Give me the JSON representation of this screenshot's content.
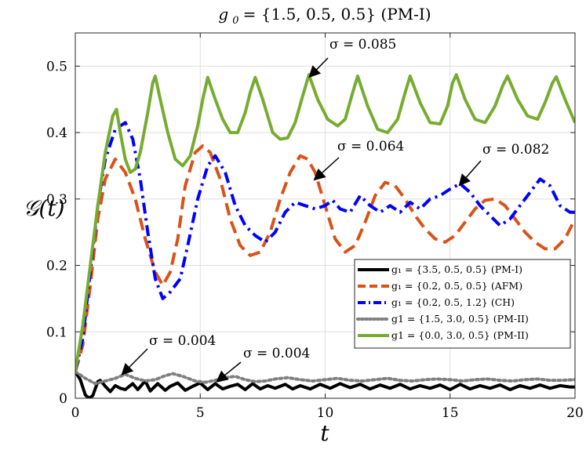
{
  "chart_data": {
    "type": "line",
    "title": "g_0 = {1.5, 0.5, 0.5} (PM-I)",
    "title_parts": {
      "symbol": "g",
      "subscript": "0",
      "rest": " = {1.5, 0.5, 0.5} (PM-I)"
    },
    "xlabel": "t",
    "ylabel": "𝒢(t)",
    "xlim": [
      0,
      20
    ],
    "ylim": [
      0,
      0.55
    ],
    "xticks": [
      0,
      5,
      10,
      15,
      20
    ],
    "xtick_labels": [
      "0",
      "5",
      "10",
      "15",
      "20"
    ],
    "yticks": [
      0,
      0.1,
      0.2,
      0.3,
      0.4,
      0.5
    ],
    "ytick_labels": [
      "0",
      "0.1",
      "0.2",
      "0.3",
      "0.4",
      "0.5"
    ],
    "grid": true,
    "legend_position": "lower-right",
    "series": [
      {
        "name": "g1 = {3.5, 0.5, 0.5} (PM-I)",
        "legend_label": "g₁ = {3.5, 0.5, 0.5} (PM-I)",
        "color": "#000000",
        "dash": "solid",
        "points": [
          [
            0,
            0.04
          ],
          [
            0.2,
            0.028
          ],
          [
            0.4,
            0.005
          ],
          [
            0.55,
            0.0
          ],
          [
            0.7,
            0.004
          ],
          [
            0.9,
            0.025
          ],
          [
            1.0,
            0.027
          ],
          [
            1.2,
            0.018
          ],
          [
            1.4,
            0.01
          ],
          [
            1.6,
            0.019
          ],
          [
            1.8,
            0.015
          ],
          [
            2.0,
            0.013
          ],
          [
            2.3,
            0.022
          ],
          [
            2.5,
            0.013
          ],
          [
            2.8,
            0.026
          ],
          [
            3.0,
            0.011
          ],
          [
            3.3,
            0.022
          ],
          [
            3.6,
            0.012
          ],
          [
            3.8,
            0.018
          ],
          [
            4.1,
            0.023
          ],
          [
            4.4,
            0.012
          ],
          [
            4.7,
            0.018
          ],
          [
            5.0,
            0.023
          ],
          [
            5.3,
            0.013
          ],
          [
            5.6,
            0.022
          ],
          [
            5.9,
            0.014
          ],
          [
            6.2,
            0.018
          ],
          [
            6.5,
            0.021
          ],
          [
            6.8,
            0.013
          ],
          [
            7.1,
            0.022
          ],
          [
            7.4,
            0.014
          ],
          [
            7.7,
            0.019
          ],
          [
            8.0,
            0.015
          ],
          [
            8.4,
            0.021
          ],
          [
            8.7,
            0.014
          ],
          [
            9.0,
            0.019
          ],
          [
            9.4,
            0.014
          ],
          [
            9.8,
            0.021
          ],
          [
            10.2,
            0.015
          ],
          [
            10.6,
            0.022
          ],
          [
            11.0,
            0.016
          ],
          [
            11.4,
            0.021
          ],
          [
            11.8,
            0.014
          ],
          [
            12.2,
            0.02
          ],
          [
            12.6,
            0.015
          ],
          [
            13.0,
            0.021
          ],
          [
            13.4,
            0.014
          ],
          [
            13.8,
            0.019
          ],
          [
            14.2,
            0.015
          ],
          [
            14.6,
            0.02
          ],
          [
            15.0,
            0.013
          ],
          [
            15.4,
            0.021
          ],
          [
            15.8,
            0.014
          ],
          [
            16.2,
            0.019
          ],
          [
            16.6,
            0.015
          ],
          [
            17.0,
            0.02
          ],
          [
            17.4,
            0.013
          ],
          [
            17.8,
            0.019
          ],
          [
            18.2,
            0.015
          ],
          [
            18.6,
            0.02
          ],
          [
            19.0,
            0.015
          ],
          [
            19.4,
            0.019
          ],
          [
            19.8,
            0.017
          ],
          [
            20.0,
            0.017
          ]
        ]
      },
      {
        "name": "g1 = {0.2, 0.5, 0.5} (AFM)",
        "legend_label": "g₁ = {0.2, 0.5, 0.5} (AFM)",
        "color": "#d95319",
        "dash": "dashed",
        "points": [
          [
            0,
            0.04
          ],
          [
            0.3,
            0.08
          ],
          [
            0.6,
            0.17
          ],
          [
            0.9,
            0.27
          ],
          [
            1.2,
            0.33
          ],
          [
            1.6,
            0.36
          ],
          [
            2.0,
            0.34
          ],
          [
            2.4,
            0.3
          ],
          [
            2.8,
            0.24
          ],
          [
            3.2,
            0.19
          ],
          [
            3.5,
            0.17
          ],
          [
            3.8,
            0.19
          ],
          [
            4.1,
            0.24
          ],
          [
            4.4,
            0.32
          ],
          [
            4.8,
            0.37
          ],
          [
            5.1,
            0.38
          ],
          [
            5.4,
            0.37
          ],
          [
            5.8,
            0.33
          ],
          [
            6.2,
            0.27
          ],
          [
            6.6,
            0.23
          ],
          [
            7.0,
            0.215
          ],
          [
            7.4,
            0.22
          ],
          [
            7.8,
            0.25
          ],
          [
            8.2,
            0.3
          ],
          [
            8.6,
            0.34
          ],
          [
            9.0,
            0.365
          ],
          [
            9.3,
            0.36
          ],
          [
            9.6,
            0.34
          ],
          [
            10.0,
            0.29
          ],
          [
            10.4,
            0.24
          ],
          [
            10.8,
            0.22
          ],
          [
            11.2,
            0.23
          ],
          [
            11.6,
            0.265
          ],
          [
            12.0,
            0.305
          ],
          [
            12.4,
            0.325
          ],
          [
            12.8,
            0.32
          ],
          [
            13.2,
            0.3
          ],
          [
            13.6,
            0.275
          ],
          [
            14.0,
            0.255
          ],
          [
            14.4,
            0.24
          ],
          [
            14.8,
            0.235
          ],
          [
            15.2,
            0.245
          ],
          [
            15.6,
            0.265
          ],
          [
            16.0,
            0.285
          ],
          [
            16.4,
            0.298
          ],
          [
            16.8,
            0.3
          ],
          [
            17.2,
            0.29
          ],
          [
            17.6,
            0.27
          ],
          [
            18.0,
            0.25
          ],
          [
            18.4,
            0.235
          ],
          [
            18.8,
            0.225
          ],
          [
            19.2,
            0.225
          ],
          [
            19.6,
            0.24
          ],
          [
            20.0,
            0.27
          ]
        ]
      },
      {
        "name": "g1 = {0.2, 0.5, 1.2} (CH)",
        "legend_label": "g₁ = {0.2, 0.5, 1.2} (CH)",
        "color": "#0000ff",
        "dash": "dashdot",
        "points": [
          [
            0,
            0.04
          ],
          [
            0.3,
            0.09
          ],
          [
            0.6,
            0.19
          ],
          [
            0.9,
            0.29
          ],
          [
            1.2,
            0.36
          ],
          [
            1.6,
            0.405
          ],
          [
            2.0,
            0.415
          ],
          [
            2.3,
            0.39
          ],
          [
            2.6,
            0.33
          ],
          [
            2.9,
            0.25
          ],
          [
            3.2,
            0.18
          ],
          [
            3.5,
            0.15
          ],
          [
            3.8,
            0.16
          ],
          [
            4.2,
            0.18
          ],
          [
            4.5,
            0.23
          ],
          [
            4.9,
            0.3
          ],
          [
            5.3,
            0.35
          ],
          [
            5.6,
            0.365
          ],
          [
            6.0,
            0.34
          ],
          [
            6.4,
            0.29
          ],
          [
            6.8,
            0.26
          ],
          [
            7.2,
            0.245
          ],
          [
            7.6,
            0.235
          ],
          [
            8.0,
            0.25
          ],
          [
            8.4,
            0.28
          ],
          [
            8.8,
            0.295
          ],
          [
            9.2,
            0.29
          ],
          [
            9.6,
            0.285
          ],
          [
            10.0,
            0.29
          ],
          [
            10.3,
            0.298
          ],
          [
            10.6,
            0.285
          ],
          [
            11.0,
            0.28
          ],
          [
            11.4,
            0.305
          ],
          [
            11.8,
            0.29
          ],
          [
            12.2,
            0.28
          ],
          [
            12.6,
            0.29
          ],
          [
            13.0,
            0.28
          ],
          [
            13.4,
            0.295
          ],
          [
            13.8,
            0.285
          ],
          [
            14.2,
            0.3
          ],
          [
            14.6,
            0.305
          ],
          [
            15.0,
            0.315
          ],
          [
            15.4,
            0.323
          ],
          [
            15.8,
            0.31
          ],
          [
            16.2,
            0.29
          ],
          [
            16.6,
            0.275
          ],
          [
            17.0,
            0.26
          ],
          [
            17.4,
            0.27
          ],
          [
            17.8,
            0.29
          ],
          [
            18.2,
            0.31
          ],
          [
            18.6,
            0.33
          ],
          [
            19.0,
            0.32
          ],
          [
            19.4,
            0.29
          ],
          [
            19.8,
            0.28
          ],
          [
            20.0,
            0.28
          ]
        ]
      },
      {
        "name": "g1 = {1.5, 3.0, 0.5} (PM-II)",
        "legend_label": "g1 = {1.5, 3.0, 0.5} (PM-II)",
        "color": "#808080",
        "dash": "dotted",
        "points": [
          [
            0,
            0.04
          ],
          [
            0.4,
            0.03
          ],
          [
            0.8,
            0.022
          ],
          [
            1.2,
            0.026
          ],
          [
            1.6,
            0.03
          ],
          [
            2.0,
            0.036
          ],
          [
            2.4,
            0.03
          ],
          [
            2.8,
            0.026
          ],
          [
            3.2,
            0.028
          ],
          [
            3.6,
            0.034
          ],
          [
            3.9,
            0.037
          ],
          [
            4.3,
            0.033
          ],
          [
            4.8,
            0.026
          ],
          [
            5.2,
            0.024
          ],
          [
            5.6,
            0.027
          ],
          [
            6.0,
            0.031
          ],
          [
            6.4,
            0.033
          ],
          [
            6.8,
            0.028
          ],
          [
            7.2,
            0.025
          ],
          [
            7.6,
            0.026
          ],
          [
            8.0,
            0.029
          ],
          [
            8.5,
            0.031
          ],
          [
            9.0,
            0.028
          ],
          [
            9.5,
            0.026
          ],
          [
            10.0,
            0.028
          ],
          [
            10.5,
            0.03
          ],
          [
            11.0,
            0.027
          ],
          [
            11.5,
            0.026
          ],
          [
            12.0,
            0.028
          ],
          [
            12.5,
            0.03
          ],
          [
            13.0,
            0.027
          ],
          [
            13.5,
            0.026
          ],
          [
            14.0,
            0.028
          ],
          [
            14.5,
            0.029
          ],
          [
            15.0,
            0.028
          ],
          [
            15.5,
            0.026
          ],
          [
            16.0,
            0.028
          ],
          [
            16.5,
            0.029
          ],
          [
            17.0,
            0.027
          ],
          [
            17.5,
            0.026
          ],
          [
            18.0,
            0.028
          ],
          [
            18.5,
            0.029
          ],
          [
            19.0,
            0.027
          ],
          [
            19.5,
            0.027
          ],
          [
            20.0,
            0.028
          ]
        ]
      },
      {
        "name": "g1 = {0.0, 3.0, 0.5} (PM-II)",
        "legend_label": "g1 = {0.0, 3.0, 0.5} (PM-II)",
        "color": "#77ac30",
        "dash": "solid",
        "points": [
          [
            0,
            0.04
          ],
          [
            0.3,
            0.11
          ],
          [
            0.6,
            0.2
          ],
          [
            0.9,
            0.29
          ],
          [
            1.2,
            0.37
          ],
          [
            1.5,
            0.425
          ],
          [
            1.65,
            0.435
          ],
          [
            1.8,
            0.4
          ],
          [
            2.0,
            0.36
          ],
          [
            2.2,
            0.34
          ],
          [
            2.4,
            0.345
          ],
          [
            2.6,
            0.37
          ],
          [
            2.9,
            0.43
          ],
          [
            3.1,
            0.475
          ],
          [
            3.2,
            0.485
          ],
          [
            3.4,
            0.45
          ],
          [
            3.7,
            0.4
          ],
          [
            4.0,
            0.36
          ],
          [
            4.3,
            0.35
          ],
          [
            4.6,
            0.365
          ],
          [
            4.9,
            0.41
          ],
          [
            5.1,
            0.45
          ],
          [
            5.3,
            0.483
          ],
          [
            5.6,
            0.45
          ],
          [
            5.9,
            0.42
          ],
          [
            6.2,
            0.4
          ],
          [
            6.5,
            0.4
          ],
          [
            6.8,
            0.43
          ],
          [
            7.0,
            0.46
          ],
          [
            7.2,
            0.483
          ],
          [
            7.5,
            0.45
          ],
          [
            7.9,
            0.4
          ],
          [
            8.2,
            0.39
          ],
          [
            8.5,
            0.392
          ],
          [
            8.8,
            0.415
          ],
          [
            9.1,
            0.455
          ],
          [
            9.35,
            0.487
          ],
          [
            9.7,
            0.45
          ],
          [
            10.1,
            0.42
          ],
          [
            10.5,
            0.41
          ],
          [
            10.8,
            0.42
          ],
          [
            11.1,
            0.46
          ],
          [
            11.3,
            0.485
          ],
          [
            11.7,
            0.44
          ],
          [
            12.1,
            0.405
          ],
          [
            12.5,
            0.4
          ],
          [
            12.9,
            0.42
          ],
          [
            13.2,
            0.46
          ],
          [
            13.4,
            0.485
          ],
          [
            13.8,
            0.445
          ],
          [
            14.2,
            0.415
          ],
          [
            14.6,
            0.413
          ],
          [
            14.9,
            0.44
          ],
          [
            15.1,
            0.475
          ],
          [
            15.25,
            0.487
          ],
          [
            15.6,
            0.45
          ],
          [
            16.0,
            0.42
          ],
          [
            16.4,
            0.415
          ],
          [
            16.8,
            0.44
          ],
          [
            17.1,
            0.47
          ],
          [
            17.3,
            0.485
          ],
          [
            17.7,
            0.45
          ],
          [
            18.1,
            0.425
          ],
          [
            18.5,
            0.42
          ],
          [
            18.8,
            0.445
          ],
          [
            19.1,
            0.475
          ],
          [
            19.25,
            0.484
          ],
          [
            19.6,
            0.45
          ],
          [
            20.0,
            0.415
          ]
        ]
      }
    ],
    "annotations": [
      {
        "text": "σ = 0.085",
        "x": 9.4,
        "y": 0.485
      },
      {
        "text": "σ = 0.064",
        "x": 9.6,
        "y": 0.33
      },
      {
        "text": "σ = 0.082",
        "x": 15.4,
        "y": 0.322
      },
      {
        "text": "σ = 0.004",
        "x": 1.9,
        "y": 0.037
      },
      {
        "text": "σ = 0.004",
        "x": 5.7,
        "y": 0.026
      }
    ]
  }
}
